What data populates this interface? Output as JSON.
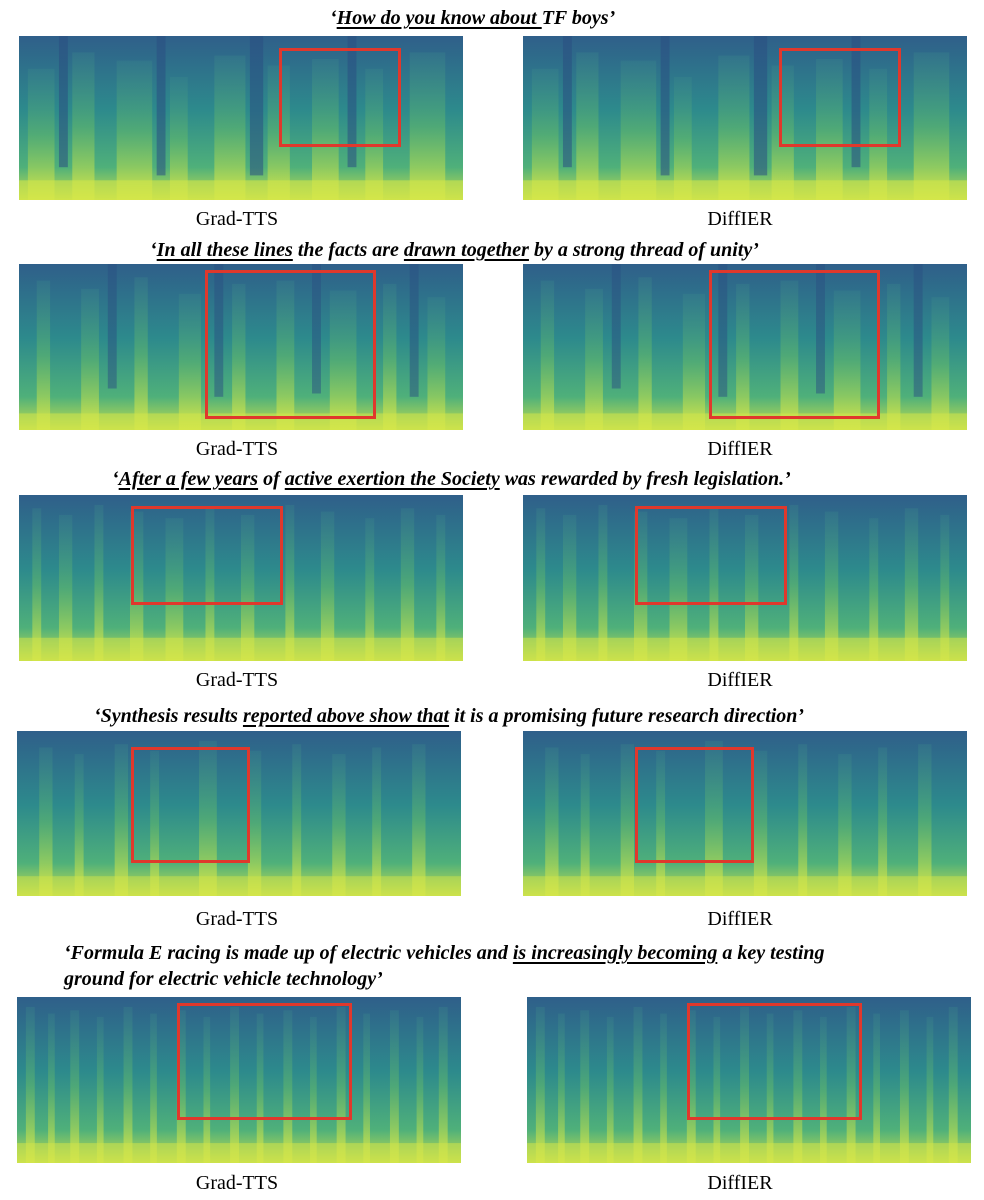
{
  "figure": {
    "rows": [
      {
        "sentence": [
          {
            "t": "‘",
            "u": false
          },
          {
            "t": "How do you know about ",
            "u": true
          },
          {
            "t": "TF boys’",
            "u": false
          }
        ],
        "left_label": "Grad-TTS",
        "right_label": "DiffIER"
      },
      {
        "sentence": [
          {
            "t": "‘",
            "u": false
          },
          {
            "t": "In all these lines",
            "u": true
          },
          {
            "t": " the facts are ",
            "u": false
          },
          {
            "t": "drawn together",
            "u": true
          },
          {
            "t": " by a strong thread of unity’",
            "u": false
          }
        ],
        "left_label": "Grad-TTS",
        "right_label": "DiffIER"
      },
      {
        "sentence": [
          {
            "t": "‘",
            "u": false
          },
          {
            "t": "After a few years",
            "u": true
          },
          {
            "t": " of ",
            "u": false
          },
          {
            "t": "active exertion the Society",
            "u": true
          },
          {
            "t": " was rewarded by fresh legislation.’",
            "u": false
          }
        ],
        "left_label": "Grad-TTS",
        "right_label": "DiffIER"
      },
      {
        "sentence": [
          {
            "t": "‘Synthesis results ",
            "u": false
          },
          {
            "t": "reported above show that",
            "u": true
          },
          {
            "t": " it is a promising future research direction’",
            "u": false
          }
        ],
        "left_label": "Grad-TTS",
        "right_label": "DiffIER"
      },
      {
        "sentence": [
          {
            "t": "‘Formula E racing is made up of electric vehicles and ",
            "u": false
          },
          {
            "t": "is increasingly becoming",
            "u": true
          },
          {
            "t": " a key testing",
            "u": false
          }
        ],
        "sentence_line2": "ground for electric vehicle technology’",
        "left_label": "Grad-TTS",
        "right_label": "DiffIER"
      }
    ],
    "colors": {
      "highlight": "#e0382c",
      "spec_dark": "#2c6b8e",
      "spec_mid": "#2b9a8a",
      "spec_bright": "#c9e34a"
    }
  }
}
